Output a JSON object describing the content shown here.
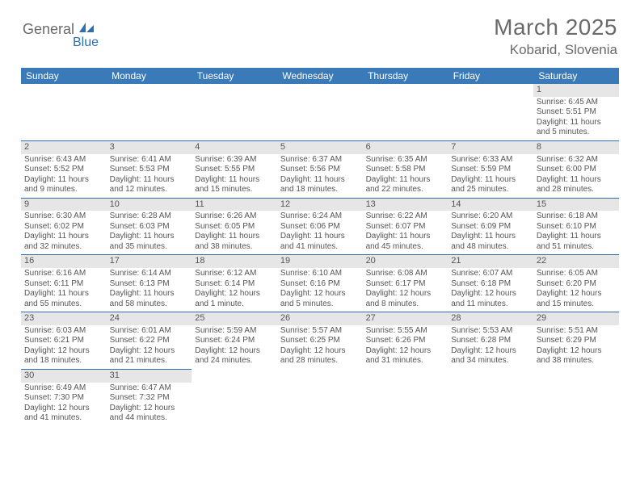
{
  "logo": {
    "part1": "General",
    "part2": "Blue"
  },
  "title": "March 2025",
  "location": "Kobarid, Slovenia",
  "colors": {
    "header_bg": "#3a7ab8",
    "header_text": "#ffffff",
    "border": "#2f6fb0",
    "daynum_bg": "#e6e6e6",
    "text": "#555555",
    "logo_gray": "#6a6a6a",
    "logo_blue": "#2f6fb0"
  },
  "weekdays": [
    "Sunday",
    "Monday",
    "Tuesday",
    "Wednesday",
    "Thursday",
    "Friday",
    "Saturday"
  ],
  "weeks": [
    [
      null,
      null,
      null,
      null,
      null,
      null,
      {
        "n": "1",
        "sunrise": "Sunrise: 6:45 AM",
        "sunset": "Sunset: 5:51 PM",
        "day1": "Daylight: 11 hours",
        "day2": "and 5 minutes."
      }
    ],
    [
      {
        "n": "2",
        "sunrise": "Sunrise: 6:43 AM",
        "sunset": "Sunset: 5:52 PM",
        "day1": "Daylight: 11 hours",
        "day2": "and 9 minutes."
      },
      {
        "n": "3",
        "sunrise": "Sunrise: 6:41 AM",
        "sunset": "Sunset: 5:53 PM",
        "day1": "Daylight: 11 hours",
        "day2": "and 12 minutes."
      },
      {
        "n": "4",
        "sunrise": "Sunrise: 6:39 AM",
        "sunset": "Sunset: 5:55 PM",
        "day1": "Daylight: 11 hours",
        "day2": "and 15 minutes."
      },
      {
        "n": "5",
        "sunrise": "Sunrise: 6:37 AM",
        "sunset": "Sunset: 5:56 PM",
        "day1": "Daylight: 11 hours",
        "day2": "and 18 minutes."
      },
      {
        "n": "6",
        "sunrise": "Sunrise: 6:35 AM",
        "sunset": "Sunset: 5:58 PM",
        "day1": "Daylight: 11 hours",
        "day2": "and 22 minutes."
      },
      {
        "n": "7",
        "sunrise": "Sunrise: 6:33 AM",
        "sunset": "Sunset: 5:59 PM",
        "day1": "Daylight: 11 hours",
        "day2": "and 25 minutes."
      },
      {
        "n": "8",
        "sunrise": "Sunrise: 6:32 AM",
        "sunset": "Sunset: 6:00 PM",
        "day1": "Daylight: 11 hours",
        "day2": "and 28 minutes."
      }
    ],
    [
      {
        "n": "9",
        "sunrise": "Sunrise: 6:30 AM",
        "sunset": "Sunset: 6:02 PM",
        "day1": "Daylight: 11 hours",
        "day2": "and 32 minutes."
      },
      {
        "n": "10",
        "sunrise": "Sunrise: 6:28 AM",
        "sunset": "Sunset: 6:03 PM",
        "day1": "Daylight: 11 hours",
        "day2": "and 35 minutes."
      },
      {
        "n": "11",
        "sunrise": "Sunrise: 6:26 AM",
        "sunset": "Sunset: 6:05 PM",
        "day1": "Daylight: 11 hours",
        "day2": "and 38 minutes."
      },
      {
        "n": "12",
        "sunrise": "Sunrise: 6:24 AM",
        "sunset": "Sunset: 6:06 PM",
        "day1": "Daylight: 11 hours",
        "day2": "and 41 minutes."
      },
      {
        "n": "13",
        "sunrise": "Sunrise: 6:22 AM",
        "sunset": "Sunset: 6:07 PM",
        "day1": "Daylight: 11 hours",
        "day2": "and 45 minutes."
      },
      {
        "n": "14",
        "sunrise": "Sunrise: 6:20 AM",
        "sunset": "Sunset: 6:09 PM",
        "day1": "Daylight: 11 hours",
        "day2": "and 48 minutes."
      },
      {
        "n": "15",
        "sunrise": "Sunrise: 6:18 AM",
        "sunset": "Sunset: 6:10 PM",
        "day1": "Daylight: 11 hours",
        "day2": "and 51 minutes."
      }
    ],
    [
      {
        "n": "16",
        "sunrise": "Sunrise: 6:16 AM",
        "sunset": "Sunset: 6:11 PM",
        "day1": "Daylight: 11 hours",
        "day2": "and 55 minutes."
      },
      {
        "n": "17",
        "sunrise": "Sunrise: 6:14 AM",
        "sunset": "Sunset: 6:13 PM",
        "day1": "Daylight: 11 hours",
        "day2": "and 58 minutes."
      },
      {
        "n": "18",
        "sunrise": "Sunrise: 6:12 AM",
        "sunset": "Sunset: 6:14 PM",
        "day1": "Daylight: 12 hours",
        "day2": "and 1 minute."
      },
      {
        "n": "19",
        "sunrise": "Sunrise: 6:10 AM",
        "sunset": "Sunset: 6:16 PM",
        "day1": "Daylight: 12 hours",
        "day2": "and 5 minutes."
      },
      {
        "n": "20",
        "sunrise": "Sunrise: 6:08 AM",
        "sunset": "Sunset: 6:17 PM",
        "day1": "Daylight: 12 hours",
        "day2": "and 8 minutes."
      },
      {
        "n": "21",
        "sunrise": "Sunrise: 6:07 AM",
        "sunset": "Sunset: 6:18 PM",
        "day1": "Daylight: 12 hours",
        "day2": "and 11 minutes."
      },
      {
        "n": "22",
        "sunrise": "Sunrise: 6:05 AM",
        "sunset": "Sunset: 6:20 PM",
        "day1": "Daylight: 12 hours",
        "day2": "and 15 minutes."
      }
    ],
    [
      {
        "n": "23",
        "sunrise": "Sunrise: 6:03 AM",
        "sunset": "Sunset: 6:21 PM",
        "day1": "Daylight: 12 hours",
        "day2": "and 18 minutes."
      },
      {
        "n": "24",
        "sunrise": "Sunrise: 6:01 AM",
        "sunset": "Sunset: 6:22 PM",
        "day1": "Daylight: 12 hours",
        "day2": "and 21 minutes."
      },
      {
        "n": "25",
        "sunrise": "Sunrise: 5:59 AM",
        "sunset": "Sunset: 6:24 PM",
        "day1": "Daylight: 12 hours",
        "day2": "and 24 minutes."
      },
      {
        "n": "26",
        "sunrise": "Sunrise: 5:57 AM",
        "sunset": "Sunset: 6:25 PM",
        "day1": "Daylight: 12 hours",
        "day2": "and 28 minutes."
      },
      {
        "n": "27",
        "sunrise": "Sunrise: 5:55 AM",
        "sunset": "Sunset: 6:26 PM",
        "day1": "Daylight: 12 hours",
        "day2": "and 31 minutes."
      },
      {
        "n": "28",
        "sunrise": "Sunrise: 5:53 AM",
        "sunset": "Sunset: 6:28 PM",
        "day1": "Daylight: 12 hours",
        "day2": "and 34 minutes."
      },
      {
        "n": "29",
        "sunrise": "Sunrise: 5:51 AM",
        "sunset": "Sunset: 6:29 PM",
        "day1": "Daylight: 12 hours",
        "day2": "and 38 minutes."
      }
    ],
    [
      {
        "n": "30",
        "sunrise": "Sunrise: 6:49 AM",
        "sunset": "Sunset: 7:30 PM",
        "day1": "Daylight: 12 hours",
        "day2": "and 41 minutes."
      },
      {
        "n": "31",
        "sunrise": "Sunrise: 6:47 AM",
        "sunset": "Sunset: 7:32 PM",
        "day1": "Daylight: 12 hours",
        "day2": "and 44 minutes."
      },
      null,
      null,
      null,
      null,
      null
    ]
  ]
}
